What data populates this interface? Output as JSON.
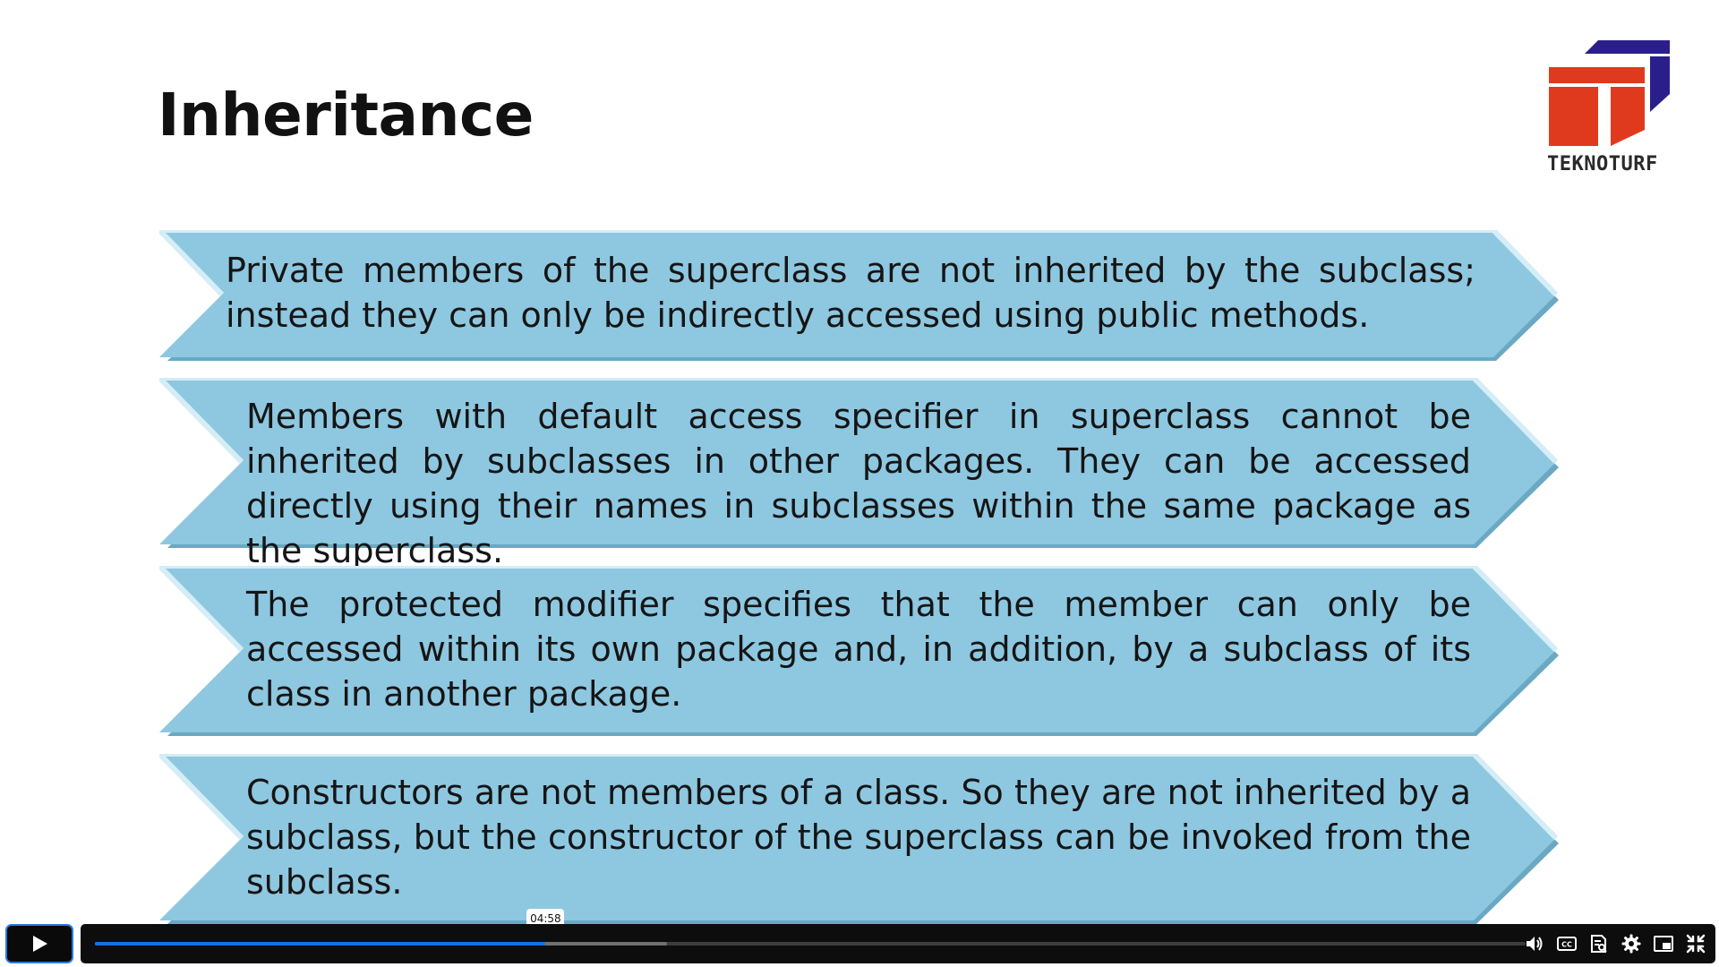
{
  "slide": {
    "title": "Inheritance",
    "logo": {
      "text": "TEKNOTURF",
      "colors": {
        "red": "#e03a1e",
        "navy": "#2a1f8a"
      }
    },
    "chevron_colors": {
      "fill": "#8ec7e0",
      "highlight": "#d4edf7",
      "shadow": "#6aa8c4"
    },
    "points": [
      "Private members of the superclass are not inherited by the subclass; instead they can only be indirectly accessed using public methods.",
      "Members with default access specifier in superclass cannot be inherited by subclasses in other packages.  They can be accessed directly using their  names in subclasses within the same package as the superclass.",
      "The protected modifier specifies that the member can only be accessed within its own package and, in addition, by a subclass of its class in another package.",
      "Constructors are not members of a class.  So they are not inherited by a subclass, but the constructor of the superclass can be invoked from the subclass."
    ]
  },
  "player": {
    "state": "paused",
    "hover_time": "04:58",
    "progress_fraction": 0.315,
    "buffered_fraction": 0.4,
    "accent_color": "#1b6fe3",
    "icons": [
      "play-icon",
      "volume-icon",
      "captions-icon",
      "transcript-icon",
      "settings-icon",
      "picture-in-picture-icon",
      "exit-fullscreen-icon"
    ]
  }
}
